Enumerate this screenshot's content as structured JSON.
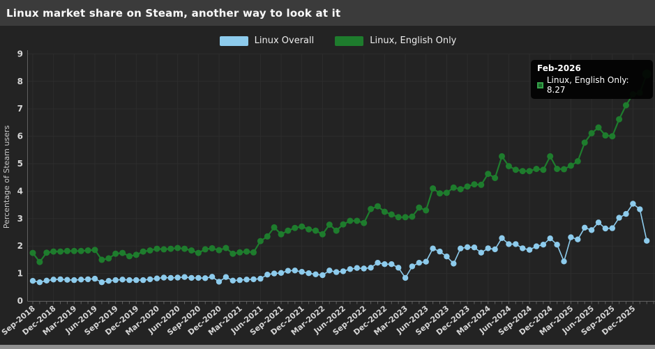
{
  "window": {
    "title": "Linux market share on Steam, another way to look at it"
  },
  "legend": {
    "items": [
      {
        "label": "Linux Overall",
        "color": "#8dcbec"
      },
      {
        "label": "Linux, English Only",
        "color": "#1e7c2d"
      }
    ]
  },
  "tooltip": {
    "title": "Feb-2026",
    "series_label": "Linux, English Only",
    "value": "8.27",
    "text": "Linux, English Only: 8.27"
  },
  "chart_data": {
    "type": "line",
    "title": "Linux market share on Steam, another way to look at it",
    "xlabel": "",
    "ylabel": "Percentage of Steam users",
    "ylim": [
      0,
      9
    ],
    "y_ticks": [
      0,
      1,
      2,
      3,
      4,
      5,
      6,
      7,
      8,
      9
    ],
    "grid": true,
    "legend_position": "top-center",
    "x": [
      "Sep-2018",
      "Oct-2018",
      "Nov-2018",
      "Dec-2018",
      "Jan-2019",
      "Feb-2019",
      "Mar-2019",
      "Apr-2019",
      "May-2019",
      "Jun-2019",
      "Jul-2019",
      "Aug-2019",
      "Sep-2019",
      "Oct-2019",
      "Nov-2019",
      "Dec-2019",
      "Jan-2020",
      "Feb-2020",
      "Mar-2020",
      "Apr-2020",
      "May-2020",
      "Jun-2020",
      "Jul-2020",
      "Aug-2020",
      "Sep-2020",
      "Oct-2020",
      "Nov-2020",
      "Dec-2020",
      "Jan-2021",
      "Feb-2021",
      "Mar-2021",
      "Apr-2021",
      "May-2021",
      "Jun-2021",
      "Jul-2021",
      "Aug-2021",
      "Sep-2021",
      "Oct-2021",
      "Nov-2021",
      "Dec-2021",
      "Jan-2022",
      "Feb-2022",
      "Mar-2022",
      "Apr-2022",
      "May-2022",
      "Jun-2022",
      "Jul-2022",
      "Aug-2022",
      "Sep-2022",
      "Oct-2022",
      "Nov-2022",
      "Dec-2022",
      "Jan-2023",
      "Feb-2023",
      "Mar-2023",
      "Apr-2023",
      "May-2023",
      "Jun-2023",
      "Jul-2023",
      "Aug-2023",
      "Sep-2023",
      "Oct-2023",
      "Nov-2023",
      "Dec-2023",
      "Jan-2024",
      "Feb-2024",
      "Mar-2024",
      "Apr-2024",
      "May-2024",
      "Jun-2024",
      "Jul-2024",
      "Aug-2024",
      "Sep-2024",
      "Oct-2024",
      "Nov-2024",
      "Dec-2024",
      "Jan-2025",
      "Feb-2025",
      "Mar-2025",
      "Apr-2025",
      "May-2025",
      "Jun-2025",
      "Jul-2025",
      "Aug-2025",
      "Sep-2025",
      "Oct-2025",
      "Nov-2025",
      "Dec-2025",
      "Jan-2026",
      "Feb-2026"
    ],
    "x_tick_labels": [
      "Sep-2018",
      "Dec-2018",
      "Mar-2019",
      "Jun-2019",
      "Sep-2019",
      "Dec-2019",
      "Mar-2020",
      "Jun-2020",
      "Sep-2020",
      "Dec-2020",
      "Mar-2021",
      "Jun-2021",
      "Sep-2021",
      "Dec-2021",
      "Mar-2022",
      "Jun-2022",
      "Sep-2022",
      "Dec-2022",
      "Mar-2023",
      "Jun-2023",
      "Sep-2023",
      "Dec-2023",
      "Mar-2024",
      "Jun-2024",
      "Sep-2024",
      "Dec-2024",
      "Mar-2025",
      "Jun-2025",
      "Sep-2025",
      "Dec-2025"
    ],
    "series": [
      {
        "name": "Linux Overall",
        "color": "#8dcbec",
        "values": [
          0.73,
          0.68,
          0.74,
          0.78,
          0.79,
          0.77,
          0.76,
          0.78,
          0.79,
          0.81,
          0.68,
          0.73,
          0.76,
          0.78,
          0.76,
          0.76,
          0.76,
          0.79,
          0.82,
          0.85,
          0.84,
          0.85,
          0.87,
          0.84,
          0.84,
          0.83,
          0.88,
          0.7,
          0.87,
          0.74,
          0.76,
          0.78,
          0.79,
          0.81,
          0.96,
          1.0,
          1.02,
          1.1,
          1.11,
          1.06,
          1.01,
          0.97,
          0.94,
          1.11,
          1.05,
          1.08,
          1.16,
          1.2,
          1.18,
          1.21,
          1.39,
          1.34,
          1.34,
          1.21,
          0.84,
          1.26,
          1.39,
          1.43,
          1.91,
          1.8,
          1.62,
          1.36,
          1.91,
          1.96,
          1.95,
          1.76,
          1.92,
          1.88,
          2.29,
          2.07,
          2.07,
          1.92,
          1.86,
          1.99,
          2.05,
          2.28,
          2.05,
          1.44,
          2.32,
          2.24,
          2.67,
          2.58,
          2.86,
          2.64,
          2.65,
          3.03,
          3.17,
          3.54,
          3.34,
          2.19
        ]
      },
      {
        "name": "Linux, English Only",
        "color": "#1e7c2d",
        "values": [
          1.75,
          1.42,
          1.76,
          1.8,
          1.8,
          1.82,
          1.82,
          1.82,
          1.84,
          1.86,
          1.5,
          1.55,
          1.72,
          1.75,
          1.63,
          1.68,
          1.8,
          1.84,
          1.9,
          1.88,
          1.9,
          1.93,
          1.9,
          1.84,
          1.75,
          1.88,
          1.92,
          1.85,
          1.93,
          1.72,
          1.77,
          1.8,
          1.77,
          2.18,
          2.35,
          2.68,
          2.43,
          2.56,
          2.66,
          2.71,
          2.61,
          2.56,
          2.43,
          2.78,
          2.56,
          2.79,
          2.92,
          2.92,
          2.84,
          3.35,
          3.45,
          3.25,
          3.15,
          3.05,
          3.05,
          3.07,
          3.4,
          3.3,
          4.1,
          3.92,
          3.94,
          4.13,
          4.07,
          4.17,
          4.25,
          4.23,
          4.63,
          4.48,
          5.27,
          4.91,
          4.78,
          4.73,
          4.73,
          4.81,
          4.78,
          5.27,
          4.81,
          4.8,
          4.93,
          5.09,
          5.77,
          6.11,
          6.32,
          6.03,
          6.0,
          6.62,
          7.13,
          7.53,
          7.58,
          8.27
        ]
      }
    ],
    "highlighted_point": {
      "series": "Linux, English Only",
      "x": "Feb-2026",
      "value": 8.27
    }
  },
  "colors": {
    "background": "#232323",
    "titlebar": "#3b3b3b",
    "gridline": "#2d2d2d",
    "axis": "#606060",
    "tick_label": "#d6d6d6",
    "bottom_bar": "#8f8f8f"
  }
}
